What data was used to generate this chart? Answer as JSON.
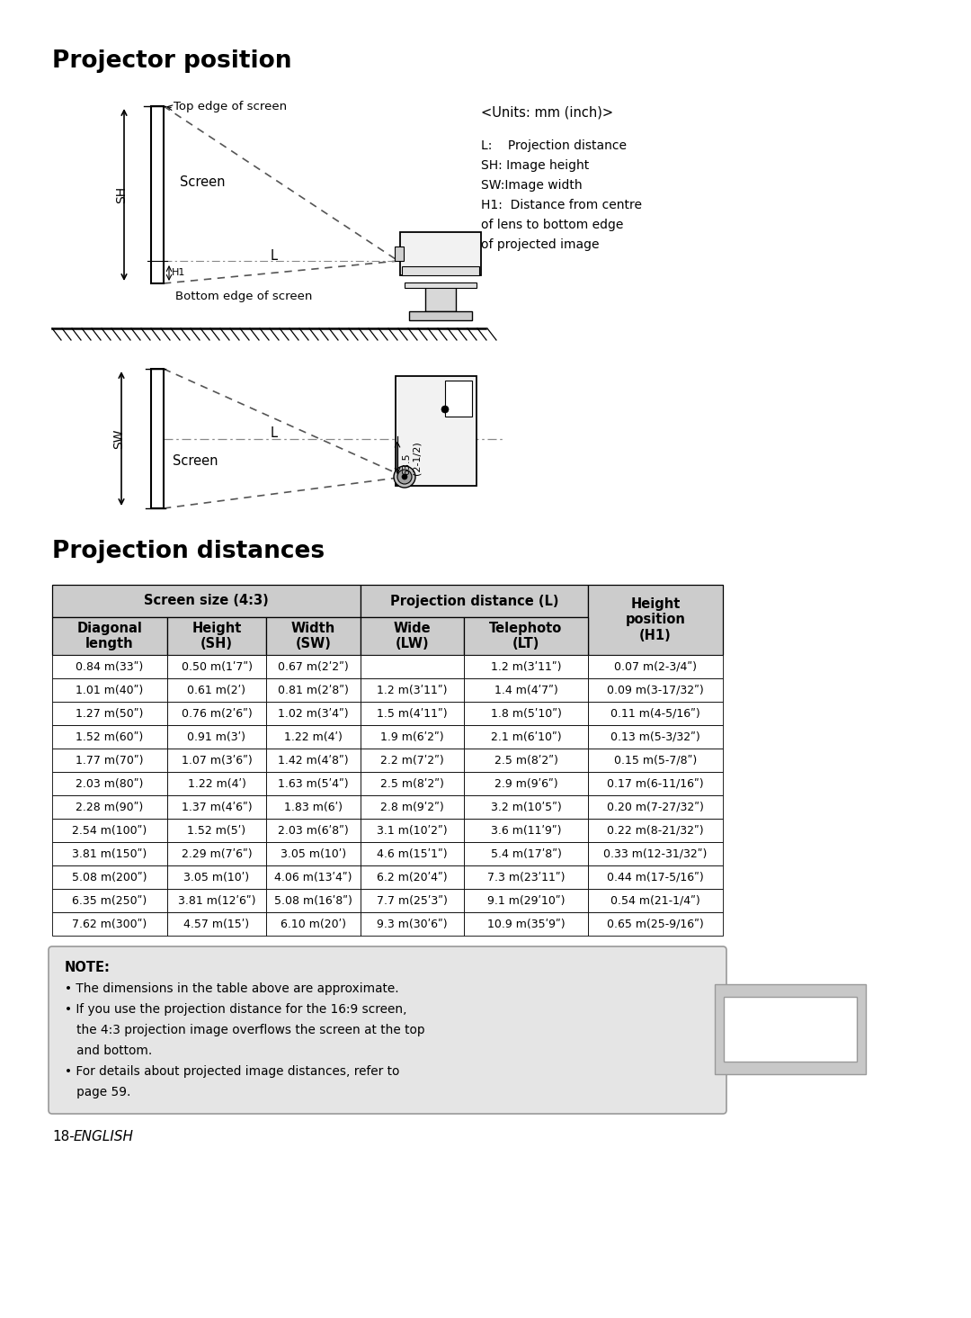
{
  "title1": "Projector position",
  "title2": "Projection distances",
  "units_text": "<Units: mm (inch)>",
  "legend_lines": [
    [
      "L:    ",
      "Projection distance"
    ],
    [
      "SH: ",
      "Image height"
    ],
    [
      "SW:",
      "Image width"
    ],
    [
      "H1:  ",
      "Distance from centre"
    ],
    [
      "",
      "of lens to bottom edge"
    ],
    [
      "",
      "of projected image"
    ]
  ],
  "note_title": "NOTE:",
  "note_lines": [
    "• The dimensions in the table above are approximate.",
    "• If you use the projection distance for the 16:9 screen,",
    "   the 4:3 projection image overflows the screen at the top",
    "   and bottom.",
    "• For details about projected image distances, refer to",
    "   page 59."
  ],
  "footer_num": "18-",
  "footer_text": "ENGLISH",
  "table_data": [
    [
      "0.84 m(33ʺ)",
      "0.50 m(1ʹ7ʺ)",
      "0.67 m(2ʹ2ʺ)",
      "",
      "1.2 m(3ʹ11ʺ)",
      "0.07 m(2-3/4ʺ)"
    ],
    [
      "1.01 m(40ʺ)",
      "0.61 m(2ʹ)",
      "0.81 m(2ʹ8ʺ)",
      "1.2 m(3ʹ11ʺ)",
      "1.4 m(4ʹ7ʺ)",
      "0.09 m(3-17/32ʺ)"
    ],
    [
      "1.27 m(50ʺ)",
      "0.76 m(2ʹ6ʺ)",
      "1.02 m(3ʹ4ʺ)",
      "1.5 m(4ʹ11ʺ)",
      "1.8 m(5ʹ10ʺ)",
      "0.11 m(4-5/16ʺ)"
    ],
    [
      "1.52 m(60ʺ)",
      "0.91 m(3ʹ)",
      "1.22 m(4ʹ)",
      "1.9 m(6ʹ2ʺ)",
      "2.1 m(6ʹ10ʺ)",
      "0.13 m(5-3/32ʺ)"
    ],
    [
      "1.77 m(70ʺ)",
      "1.07 m(3ʹ6ʺ)",
      "1.42 m(4ʹ8ʺ)",
      "2.2 m(7ʹ2ʺ)",
      "2.5 m(8ʹ2ʺ)",
      "0.15 m(5-7/8ʺ)"
    ],
    [
      "2.03 m(80ʺ)",
      "1.22 m(4ʹ)",
      "1.63 m(5ʹ4ʺ)",
      "2.5 m(8ʹ2ʺ)",
      "2.9 m(9ʹ6ʺ)",
      "0.17 m(6-11/16ʺ)"
    ],
    [
      "2.28 m(90ʺ)",
      "1.37 m(4ʹ6ʺ)",
      "1.83 m(6ʹ)",
      "2.8 m(9ʹ2ʺ)",
      "3.2 m(10ʹ5ʺ)",
      "0.20 m(7-27/32ʺ)"
    ],
    [
      "2.54 m(100ʺ)",
      "1.52 m(5ʹ)",
      "2.03 m(6ʹ8ʺ)",
      "3.1 m(10ʹ2ʺ)",
      "3.6 m(11ʹ9ʺ)",
      "0.22 m(8-21/32ʺ)"
    ],
    [
      "3.81 m(150ʺ)",
      "2.29 m(7ʹ6ʺ)",
      "3.05 m(10ʹ)",
      "4.6 m(15ʹ1ʺ)",
      "5.4 m(17ʹ8ʺ)",
      "0.33 m(12-31/32ʺ)"
    ],
    [
      "5.08 m(200ʺ)",
      "3.05 m(10ʹ)",
      "4.06 m(13ʹ4ʺ)",
      "6.2 m(20ʹ4ʺ)",
      "7.3 m(23ʹ11ʺ)",
      "0.44 m(17-5/16ʺ)"
    ],
    [
      "6.35 m(250ʺ)",
      "3.81 m(12ʹ6ʺ)",
      "5.08 m(16ʹ8ʺ)",
      "7.7 m(25ʹ3ʺ)",
      "9.1 m(29ʹ10ʺ)",
      "0.54 m(21-1/4ʺ)"
    ],
    [
      "7.62 m(300ʺ)",
      "4.57 m(15ʹ)",
      "6.10 m(20ʹ)",
      "9.3 m(30ʹ6ʺ)",
      "10.9 m(35ʹ9ʺ)",
      "0.65 m(25-9/16ʺ)"
    ]
  ]
}
